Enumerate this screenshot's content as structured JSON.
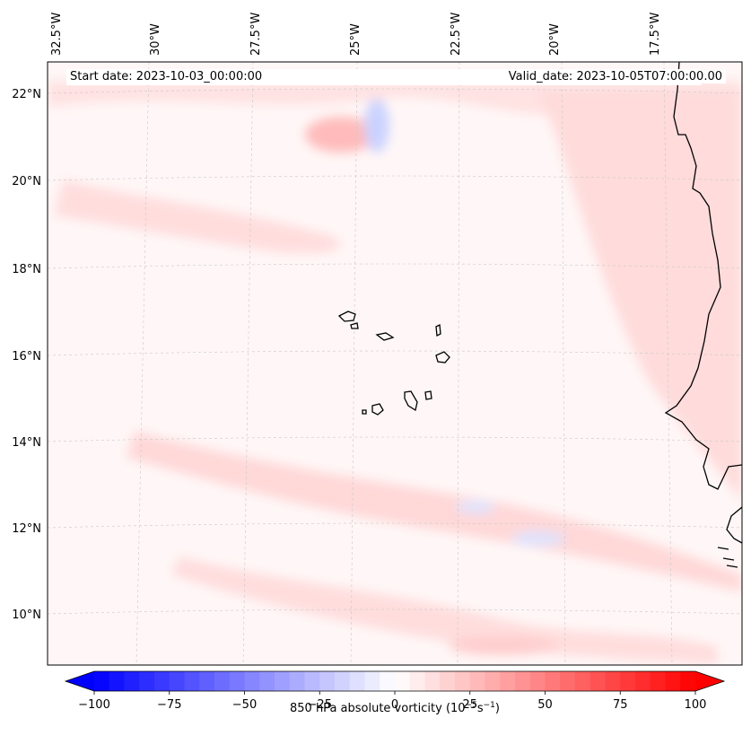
{
  "map": {
    "projection": "lambert-conformal",
    "lon_labels": [
      "32.5°W",
      "30°W",
      "27.5°W",
      "25°W",
      "22.5°W",
      "20°W",
      "17.5°W"
    ],
    "lat_labels": [
      "22°N",
      "20°N",
      "18°N",
      "16°N",
      "14°N",
      "12°N",
      "10°N"
    ],
    "start_date": "Start date: 2023-10-03_00:00:00",
    "valid_date": "Valid_date: 2023-10-05T07:00:00.00",
    "field": "850 hPa absolute vorticity",
    "colormap": "bwr",
    "colors": {
      "neg": "#0000ff",
      "zero": "#ffffff",
      "pos": "#ff0000",
      "coast": "#000000",
      "grid": "#bbbbbb"
    }
  },
  "colorbar": {
    "ticks": [
      "−100",
      "−75",
      "−50",
      "−25",
      "0",
      "25",
      "50",
      "75",
      "100"
    ],
    "vmin": -100,
    "vmax": 100,
    "levels": 41,
    "label_text": "850 hPa absolute vorticity (10",
    "label_exp1": "−5",
    "label_mid": "s",
    "label_exp2": "−1",
    "label_close": ")",
    "extend": "both"
  }
}
